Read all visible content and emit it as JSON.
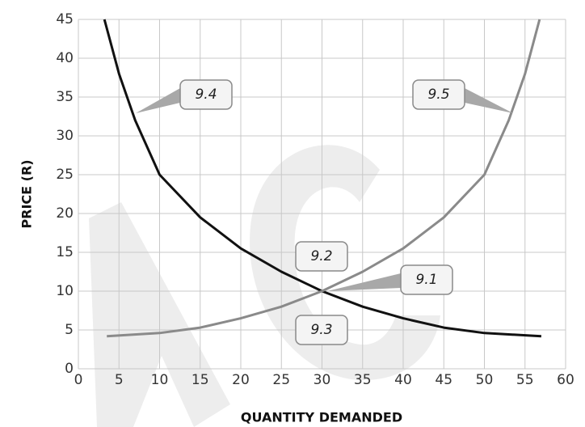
{
  "chart_data": {
    "type": "line",
    "x_label": "QUANTITY DEMANDED",
    "y_label": "PRICE (R)",
    "xlim": [
      0,
      60
    ],
    "ylim": [
      0,
      45
    ],
    "xticks": [
      0,
      5,
      10,
      15,
      20,
      25,
      30,
      35,
      40,
      45,
      50,
      55,
      60
    ],
    "yticks": [
      0,
      5,
      10,
      15,
      20,
      25,
      30,
      35,
      40,
      45
    ],
    "grid": true,
    "series": [
      {
        "color": "#111111",
        "x": [
          3.2,
          5,
          7,
          10,
          15,
          20,
          25,
          30,
          35,
          40,
          45,
          50,
          57
        ],
        "values": [
          45,
          38,
          32,
          25,
          19.5,
          15.5,
          12.5,
          10,
          8,
          6.5,
          5.3,
          4.6,
          4.2
        ]
      },
      {
        "color": "#8a8a8a",
        "x": [
          3.5,
          10,
          15,
          20,
          25,
          30,
          35,
          40,
          45,
          50,
          53,
          55,
          56.8
        ],
        "values": [
          4.2,
          4.6,
          5.3,
          6.5,
          8,
          10,
          12.5,
          15.5,
          19.5,
          25,
          32,
          38,
          45
        ]
      }
    ],
    "annotations": [
      "9.4",
      "9.5",
      "9.2",
      "9.1",
      "9.3"
    ]
  }
}
